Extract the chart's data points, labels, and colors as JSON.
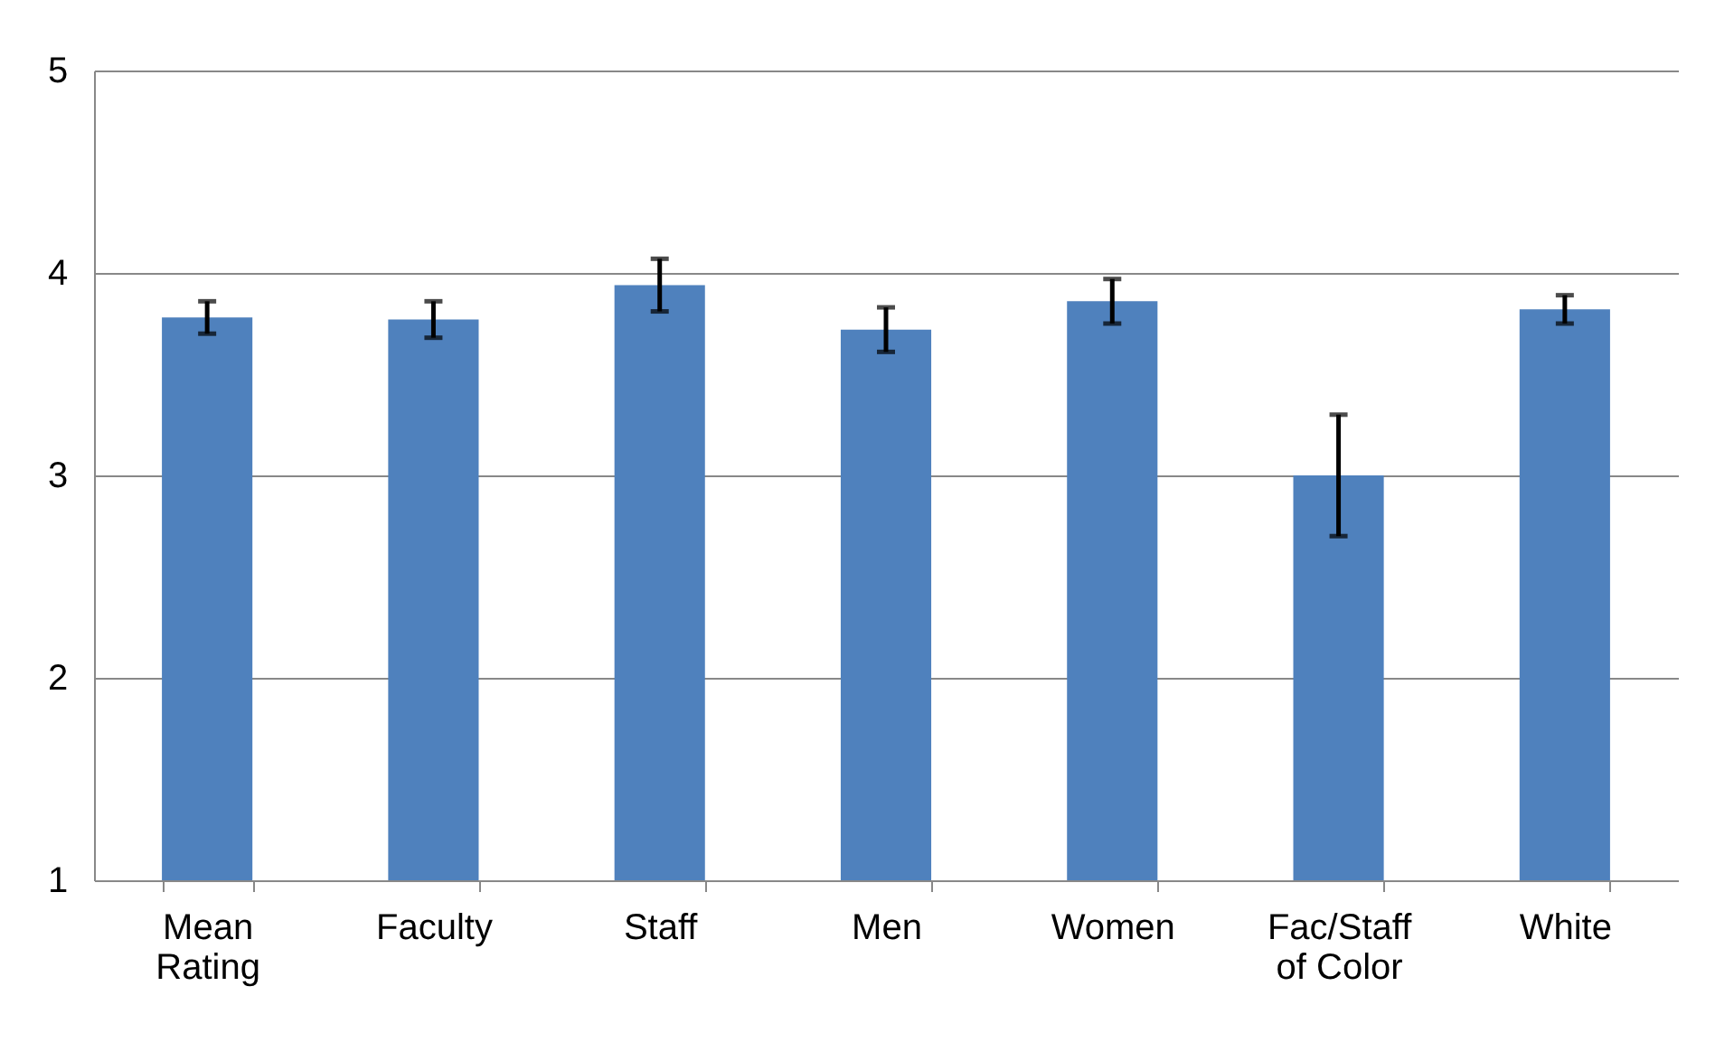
{
  "chart_data": {
    "type": "bar",
    "categories": [
      "Mean Rating",
      "Faculty",
      "Staff",
      "Men",
      "Women",
      "Fac/Staff of Color",
      "White"
    ],
    "values": [
      3.78,
      3.77,
      3.94,
      3.72,
      3.86,
      3.0,
      3.82
    ],
    "errors": [
      0.08,
      0.09,
      0.13,
      0.11,
      0.11,
      0.3,
      0.07
    ],
    "color": "#4f81bd",
    "ylim": [
      1,
      5
    ],
    "yticks": [
      1,
      2,
      3,
      4,
      5
    ],
    "grid": "y"
  }
}
